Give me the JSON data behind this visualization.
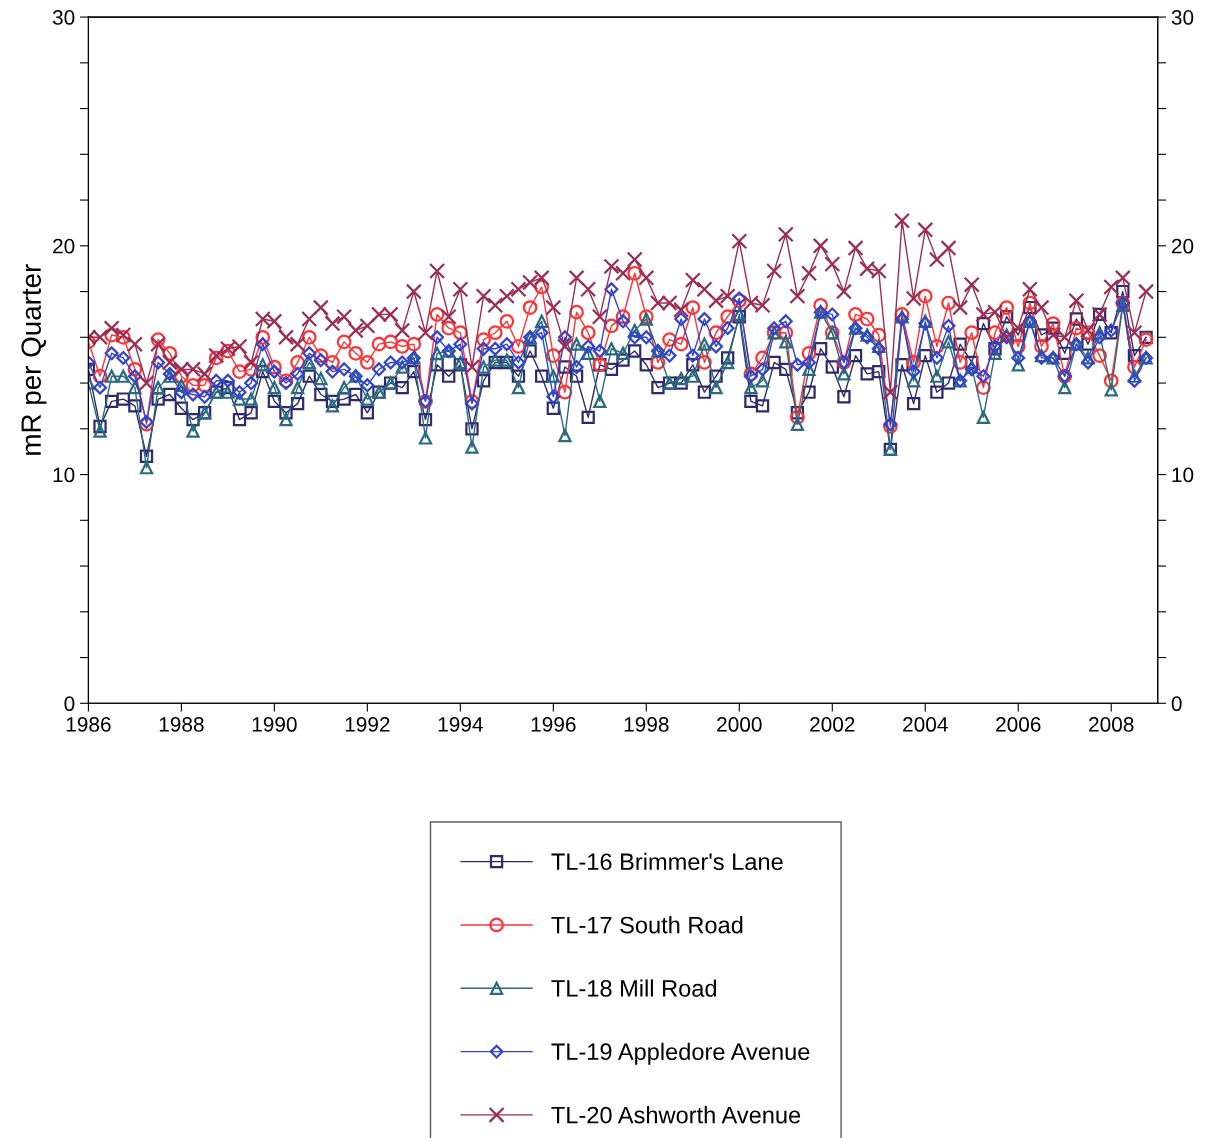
{
  "chart_data": {
    "type": "line",
    "ylabel": "mR per Quarter",
    "x": [
      1986.0,
      1986.25,
      1986.5,
      1986.75,
      1987.0,
      1987.25,
      1987.5,
      1987.75,
      1988.0,
      1988.25,
      1988.5,
      1988.75,
      1989.0,
      1989.25,
      1989.5,
      1989.75,
      1990.0,
      1990.25,
      1990.5,
      1990.75,
      1991.0,
      1991.25,
      1991.5,
      1991.75,
      1992.0,
      1992.25,
      1992.5,
      1992.75,
      1993.0,
      1993.25,
      1993.5,
      1993.75,
      1994.0,
      1994.25,
      1994.5,
      1994.75,
      1995.0,
      1995.25,
      1995.5,
      1995.75,
      1996.0,
      1996.25,
      1996.5,
      1996.75,
      1997.0,
      1997.25,
      1997.5,
      1997.75,
      1998.0,
      1998.25,
      1998.5,
      1998.75,
      1999.0,
      1999.25,
      1999.5,
      1999.75,
      2000.0,
      2000.25,
      2000.5,
      2000.75,
      2001.0,
      2001.25,
      2001.5,
      2001.75,
      2002.0,
      2002.25,
      2002.5,
      2002.75,
      2003.0,
      2003.25,
      2003.5,
      2003.75,
      2004.0,
      2004.25,
      2004.5,
      2004.75,
      2005.0,
      2005.25,
      2005.5,
      2005.75,
      2006.0,
      2006.25,
      2006.5,
      2006.75,
      2007.0,
      2007.25,
      2007.5,
      2007.75,
      2008.0,
      2008.25,
      2008.5,
      2008.75
    ],
    "series": [
      {
        "name": "TL-16 Brimmer's Lane",
        "color": "#2e2a6e",
        "marker": "square",
        "values": [
          14.6,
          12.1,
          13.2,
          13.3,
          13.0,
          10.8,
          13.3,
          13.5,
          12.9,
          12.4,
          12.7,
          13.6,
          13.8,
          12.4,
          12.7,
          14.5,
          13.2,
          12.7,
          13.1,
          14.3,
          13.5,
          13.2,
          13.3,
          13.5,
          12.7,
          13.6,
          14.0,
          13.8,
          14.5,
          12.4,
          14.8,
          14.3,
          14.8,
          12.0,
          14.1,
          14.9,
          14.9,
          14.3,
          15.4,
          14.3,
          12.9,
          14.7,
          14.3,
          12.5,
          14.8,
          14.6,
          15.0,
          15.4,
          14.8,
          13.8,
          14.0,
          14.0,
          14.8,
          13.6,
          14.3,
          15.1,
          16.9,
          13.2,
          13.0,
          14.9,
          14.6,
          12.7,
          13.6,
          15.5,
          14.7,
          13.4,
          15.2,
          14.4,
          14.5,
          11.1,
          14.8,
          13.1,
          15.2,
          13.6,
          14.0,
          15.7,
          14.9,
          16.6,
          15.5,
          16.9,
          16.1,
          17.3,
          16.1,
          16.4,
          15.3,
          16.8,
          15.7,
          17.0,
          16.2,
          18.0,
          15.2,
          16.0
        ]
      },
      {
        "name": "TL-17 South Road",
        "color": "#ff3333",
        "marker": "circle",
        "values": [
          15.8,
          14.3,
          16.1,
          16.0,
          14.6,
          12.2,
          15.9,
          15.3,
          14.3,
          13.9,
          13.9,
          15.1,
          15.4,
          14.5,
          14.6,
          16.0,
          14.7,
          14.1,
          14.9,
          16.0,
          15.2,
          14.9,
          15.8,
          15.3,
          14.9,
          15.7,
          15.8,
          15.6,
          15.7,
          13.2,
          17.0,
          16.4,
          16.2,
          13.2,
          15.9,
          16.2,
          16.7,
          15.6,
          17.3,
          18.2,
          15.2,
          13.6,
          17.1,
          16.2,
          14.8,
          16.5,
          16.9,
          18.8,
          16.9,
          14.9,
          15.9,
          15.7,
          17.3,
          14.9,
          16.2,
          16.9,
          17.6,
          14.4,
          15.1,
          16.2,
          16.2,
          12.5,
          15.3,
          17.4,
          16.2,
          14.9,
          17.0,
          16.8,
          16.1,
          12.1,
          17.0,
          14.9,
          17.8,
          15.6,
          17.5,
          14.9,
          16.2,
          13.8,
          16.2,
          17.3,
          15.6,
          17.5,
          15.6,
          16.6,
          14.3,
          16.4,
          16.2,
          15.2,
          14.1,
          17.5,
          14.7,
          15.9
        ]
      },
      {
        "name": "TL-18 Mill Road",
        "color": "#2a6a80",
        "marker": "triangle",
        "values": [
          14.0,
          11.9,
          14.3,
          14.3,
          13.8,
          10.3,
          13.8,
          14.3,
          13.9,
          11.9,
          12.7,
          13.6,
          13.6,
          13.3,
          13.3,
          14.8,
          13.8,
          12.4,
          13.8,
          14.9,
          14.2,
          13.0,
          13.8,
          14.3,
          13.3,
          13.6,
          14.0,
          14.7,
          15.1,
          11.6,
          15.3,
          15.4,
          14.9,
          11.2,
          14.7,
          15.0,
          15.0,
          13.8,
          16.0,
          16.7,
          14.3,
          11.7,
          15.7,
          15.3,
          13.2,
          15.5,
          15.3,
          16.3,
          16.8,
          15.4,
          14.0,
          14.2,
          14.3,
          15.7,
          13.8,
          14.9,
          17.0,
          13.8,
          14.1,
          16.2,
          15.8,
          12.2,
          14.6,
          17.1,
          16.2,
          14.4,
          16.4,
          16.1,
          15.6,
          11.1,
          16.9,
          14.1,
          16.7,
          14.3,
          15.8,
          14.1,
          14.7,
          12.5,
          15.3,
          16.1,
          14.8,
          16.7,
          15.2,
          15.1,
          13.8,
          15.7,
          15.1,
          16.2,
          13.7,
          17.4,
          14.3,
          15.1
        ]
      },
      {
        "name": "TL-19 Appledore Avenue",
        "color": "#3344cc",
        "marker": "diamond",
        "values": [
          14.9,
          13.8,
          15.3,
          15.1,
          14.3,
          12.3,
          14.9,
          14.4,
          13.6,
          13.5,
          13.4,
          14.1,
          14.1,
          13.6,
          14.0,
          15.7,
          14.5,
          14.0,
          14.4,
          15.3,
          15.0,
          14.5,
          14.6,
          14.3,
          13.9,
          14.6,
          14.9,
          14.9,
          15.1,
          13.2,
          16.0,
          15.4,
          15.7,
          13.1,
          15.5,
          15.5,
          15.7,
          14.9,
          16.0,
          16.2,
          13.4,
          16.0,
          14.7,
          15.6,
          15.4,
          18.1,
          16.7,
          16.0,
          16.0,
          15.4,
          15.2,
          16.8,
          15.2,
          16.8,
          15.6,
          16.4,
          17.7,
          14.3,
          14.6,
          16.4,
          16.7,
          14.8,
          14.9,
          17.1,
          17.0,
          14.9,
          16.4,
          16.0,
          15.5,
          12.2,
          16.8,
          14.5,
          16.6,
          15.1,
          16.5,
          14.1,
          14.6,
          14.3,
          15.6,
          16.0,
          15.1,
          16.7,
          15.1,
          15.1,
          14.3,
          15.7,
          14.9,
          16.0,
          16.3,
          17.5,
          14.1,
          15.1
        ]
      },
      {
        "name": "TL-20 Ashworth Avenue",
        "color": "#9b2d55",
        "marker": "cross",
        "values": [
          16.0,
          16.0,
          16.4,
          16.1,
          15.7,
          14.0,
          15.7,
          14.9,
          14.6,
          14.6,
          14.4,
          15.2,
          15.5,
          15.6,
          14.9,
          16.8,
          16.7,
          16.0,
          15.7,
          16.8,
          17.3,
          16.6,
          16.9,
          16.3,
          16.5,
          17.0,
          17.0,
          16.3,
          18.0,
          16.2,
          18.9,
          16.9,
          18.1,
          14.7,
          17.8,
          17.4,
          17.8,
          18.1,
          18.4,
          18.6,
          17.3,
          15.6,
          18.6,
          18.1,
          16.9,
          19.1,
          18.8,
          19.4,
          18.6,
          17.5,
          17.5,
          17.2,
          18.5,
          18.1,
          17.6,
          17.8,
          20.2,
          17.5,
          17.4,
          18.9,
          20.5,
          17.8,
          18.8,
          20.0,
          19.2,
          18.0,
          19.9,
          19.0,
          18.9,
          13.6,
          21.1,
          17.7,
          20.7,
          19.4,
          19.9,
          17.3,
          18.3,
          17.0,
          17.1,
          16.0,
          16.4,
          18.1,
          17.3,
          16.1,
          16.0,
          17.6,
          16.3,
          17.0,
          18.2,
          18.6,
          16.2,
          18.0
        ]
      }
    ],
    "xlim": [
      1986,
      2009
    ],
    "xticks": [
      1986,
      1988,
      1990,
      1992,
      1994,
      1996,
      1998,
      2000,
      2002,
      2004,
      2006,
      2008
    ],
    "ylim": [
      0,
      30
    ],
    "yticks": [
      0,
      {
        "value": 2,
        "label": null
      },
      {
        "value": 4,
        "label": null
      },
      {
        "value": 6,
        "label": null
      },
      {
        "value": 8,
        "label": null
      },
      10,
      {
        "value": 12,
        "label": null
      },
      {
        "value": 14,
        "label": null
      },
      {
        "value": 16,
        "label": null
      },
      {
        "value": 18,
        "label": null
      },
      20,
      {
        "value": 22,
        "label": null
      },
      {
        "value": 24,
        "label": null
      },
      {
        "value": 26,
        "label": null
      },
      {
        "value": 28,
        "label": null
      },
      30
    ],
    "y2lim": [
      0,
      30
    ],
    "y2ticks": [
      0,
      {
        "value": 2,
        "label": null
      },
      {
        "value": 4,
        "label": null
      },
      {
        "value": 6,
        "label": null
      },
      {
        "value": 8,
        "label": null
      },
      10,
      {
        "value": 12,
        "label": null
      },
      {
        "value": 14,
        "label": null
      },
      {
        "value": 16,
        "label": null
      },
      {
        "value": 18,
        "label": null
      },
      20,
      {
        "value": 22,
        "label": null
      },
      {
        "value": 24,
        "label": null
      },
      {
        "value": 26,
        "label": null
      },
      {
        "value": 28,
        "label": null
      },
      30
    ],
    "legend": "bottom",
    "line_style": "solid",
    "grid": false
  }
}
